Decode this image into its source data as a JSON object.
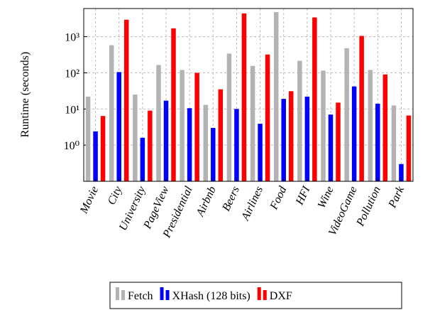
{
  "chart_data": {
    "type": "bar",
    "y_label": "Runtime (seconds)",
    "log_scale": true,
    "grid": true,
    "categories": [
      "Movie",
      "City",
      "University",
      "PageView",
      "Presidential",
      "Airbnb",
      "Beers",
      "Airlines",
      "Food",
      "HFI",
      "Wine",
      "VideoGame",
      "Pollution",
      "Park"
    ],
    "series": [
      {
        "name": "Fetch",
        "color": "#b3b3b3",
        "values": [
          22,
          580,
          25,
          165,
          120,
          13,
          340,
          155,
          4800,
          215,
          115,
          480,
          120,
          12.5
        ]
      },
      {
        "name": "XHash (128 bits)",
        "color": "#0000ff",
        "values": [
          2.4,
          105,
          1.6,
          17,
          10.5,
          3,
          10,
          3.9,
          19,
          22,
          7,
          42,
          14,
          0.3
        ]
      },
      {
        "name": "DXF",
        "color": "#ff0000",
        "values": [
          6.4,
          2950,
          9,
          1700,
          100,
          35,
          4400,
          320,
          31,
          3400,
          15,
          1050,
          90,
          6.6
        ]
      }
    ],
    "ylim": [
      0.1,
      6000
    ],
    "yticks": [
      {
        "value": 1,
        "label": "10⁰"
      },
      {
        "value": 10,
        "label": "10¹"
      },
      {
        "value": 100,
        "label": "10²"
      },
      {
        "value": 1000,
        "label": "10³"
      }
    ]
  }
}
